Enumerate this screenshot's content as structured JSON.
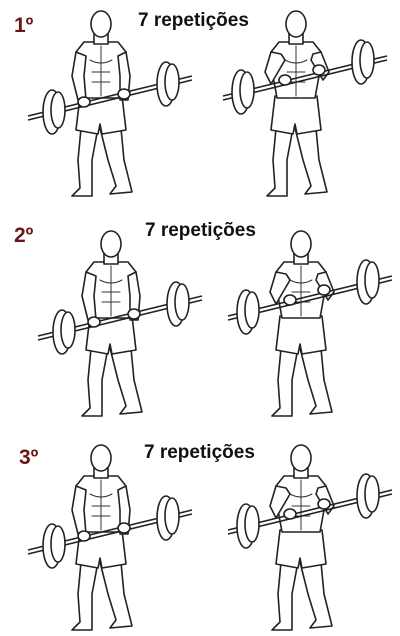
{
  "steps": [
    {
      "number": "1º",
      "reps": "7 repetições"
    },
    {
      "number": "2º",
      "reps": "7 repetições"
    },
    {
      "number": "3º",
      "reps": "7 repetições"
    }
  ],
  "icons": [
    "barbell-curl-start-figure",
    "barbell-curl-top-figure"
  ]
}
